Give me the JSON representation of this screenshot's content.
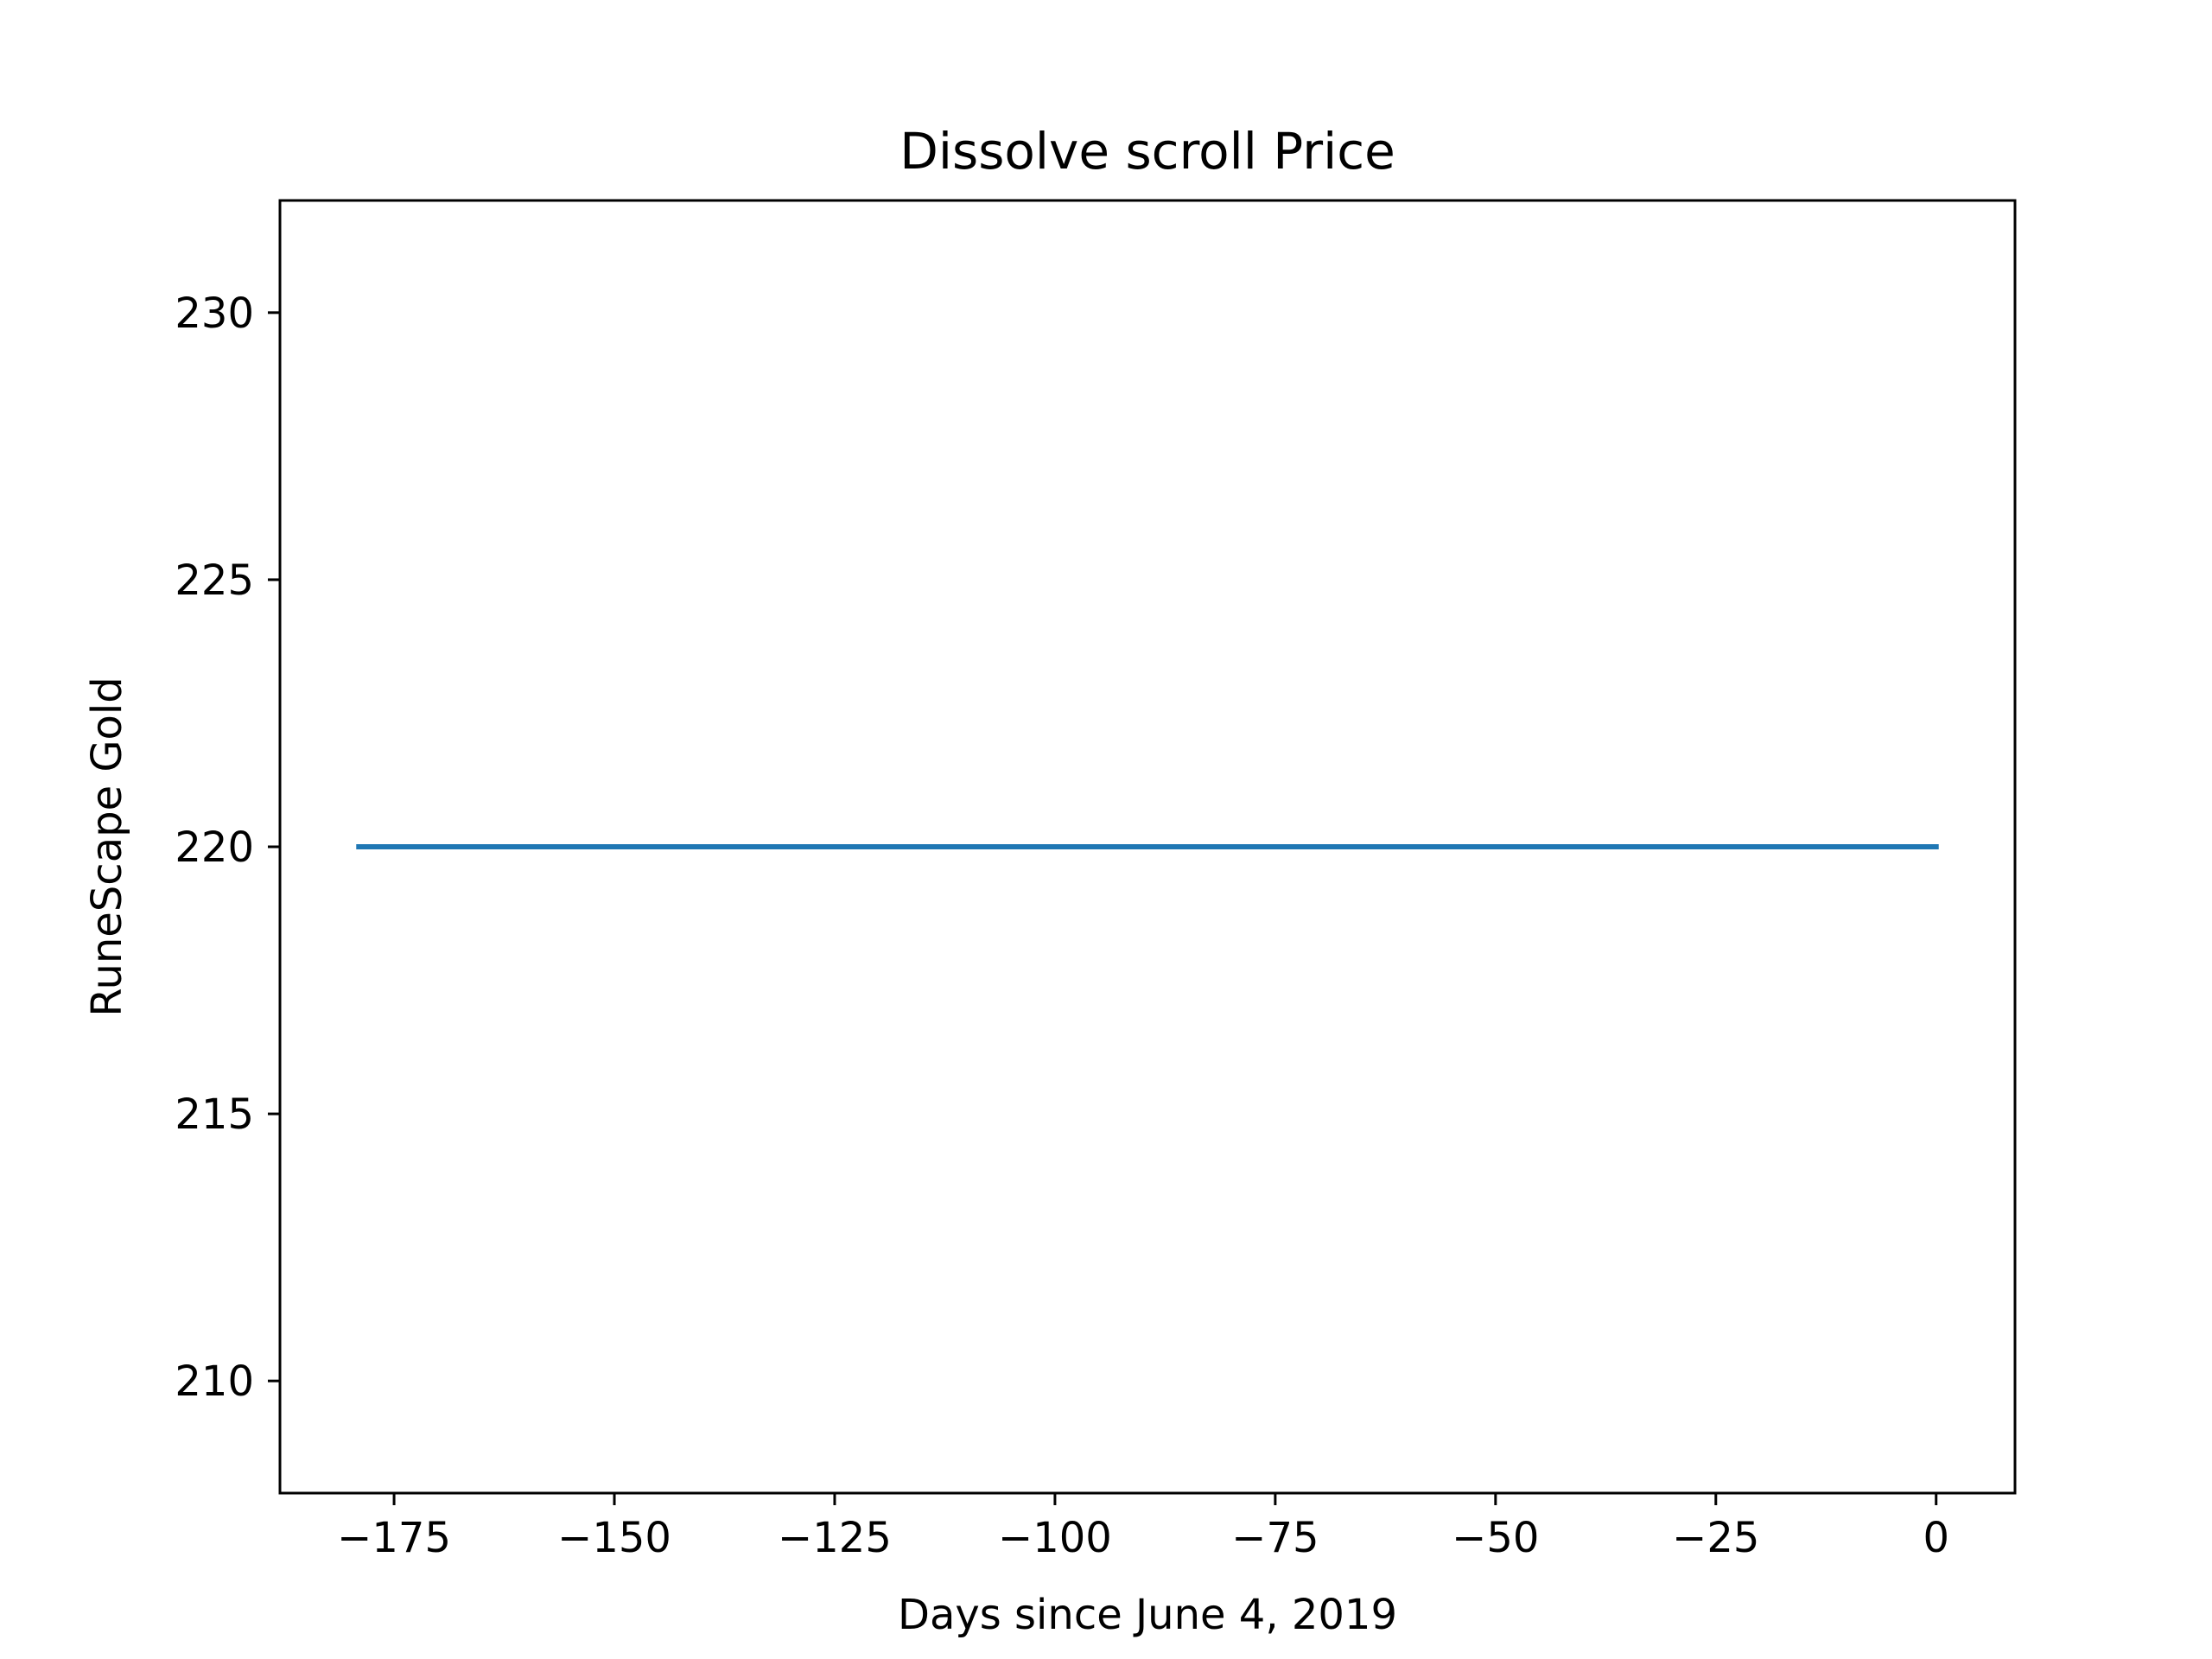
{
  "chart_data": {
    "type": "line",
    "title": "Dissolve scroll Price",
    "xlabel": "Days since June 4, 2019",
    "ylabel": "RuneScape Gold",
    "xlim": [
      -187.95,
      8.95
    ],
    "ylim": [
      207.9,
      232.1
    ],
    "x_ticks": [
      -175,
      -150,
      -125,
      -100,
      -75,
      -50,
      -25,
      0
    ],
    "x_tick_labels": [
      "−175",
      "−150",
      "−125",
      "−100",
      "−75",
      "−50",
      "−25",
      "0"
    ],
    "y_ticks": [
      210,
      215,
      220,
      225,
      230
    ],
    "y_tick_labels": [
      "210",
      "215",
      "220",
      "225",
      "230"
    ],
    "grid": false,
    "series": [
      {
        "name": "Dissolve scroll",
        "color": "#1f77b4",
        "x": [
          -179,
          0
        ],
        "y": [
          220,
          220
        ]
      }
    ]
  }
}
